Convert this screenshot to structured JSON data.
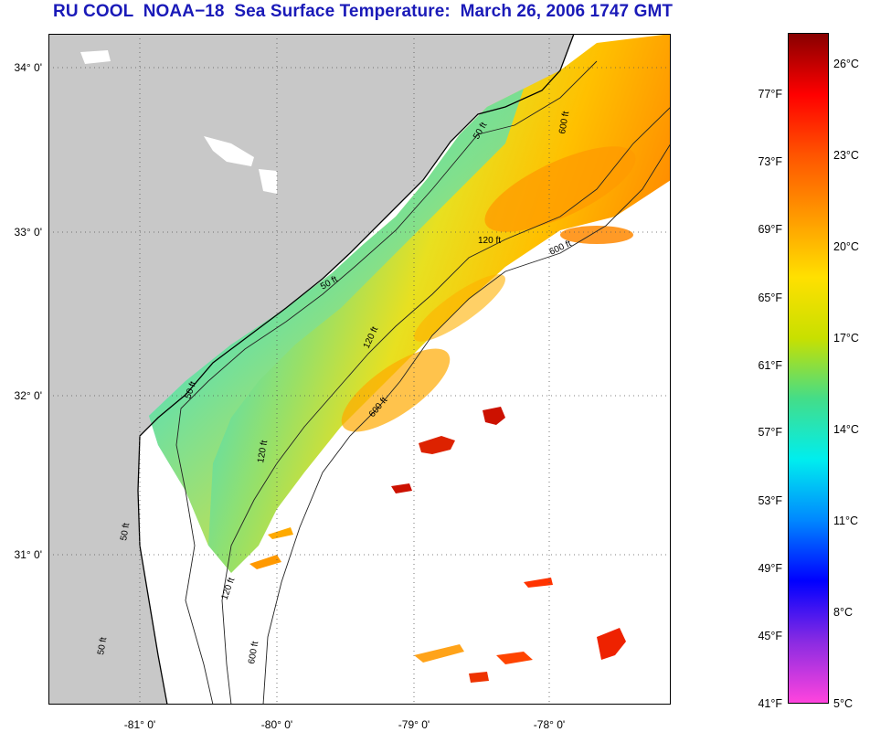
{
  "title": "RU COOL  NOAA−18  Sea Surface Temperature:  March 26, 2006 1747 GMT",
  "colors": {
    "land": "#c8c8c8",
    "title": "#1a1ab8",
    "scale": [
      "#ff44dd",
      "#8a2be2",
      "#0000ff",
      "#0088ff",
      "#00eeee",
      "#44dd88",
      "#c8e000",
      "#ffe000",
      "#ff9900",
      "#ff5500",
      "#ff0000",
      "#880000"
    ]
  },
  "map": {
    "lat_labels": [
      "34° 0'",
      "33° 0'",
      "32° 0'",
      "31° 0'"
    ],
    "lon_labels": [
      "-81° 0'",
      "-80° 0'",
      "-79° 0'",
      "-78° 0'"
    ],
    "contour_labels": [
      "50 ft",
      "120 ft",
      "600 ft",
      "50 ft",
      "120 ft",
      "600 ft",
      "50 ft",
      "120 ft",
      "600 ft",
      "50 ft",
      "120 ft",
      "600 ft",
      "50 ft"
    ]
  },
  "colorbar": {
    "fahrenheit": [
      "77°F",
      "73°F",
      "69°F",
      "65°F",
      "61°F",
      "57°F",
      "53°F",
      "49°F",
      "45°F",
      "41°F"
    ],
    "celsius": [
      "26°C",
      "23°C",
      "20°C",
      "17°C",
      "14°C",
      "11°C",
      "8°C",
      "5°C"
    ]
  }
}
